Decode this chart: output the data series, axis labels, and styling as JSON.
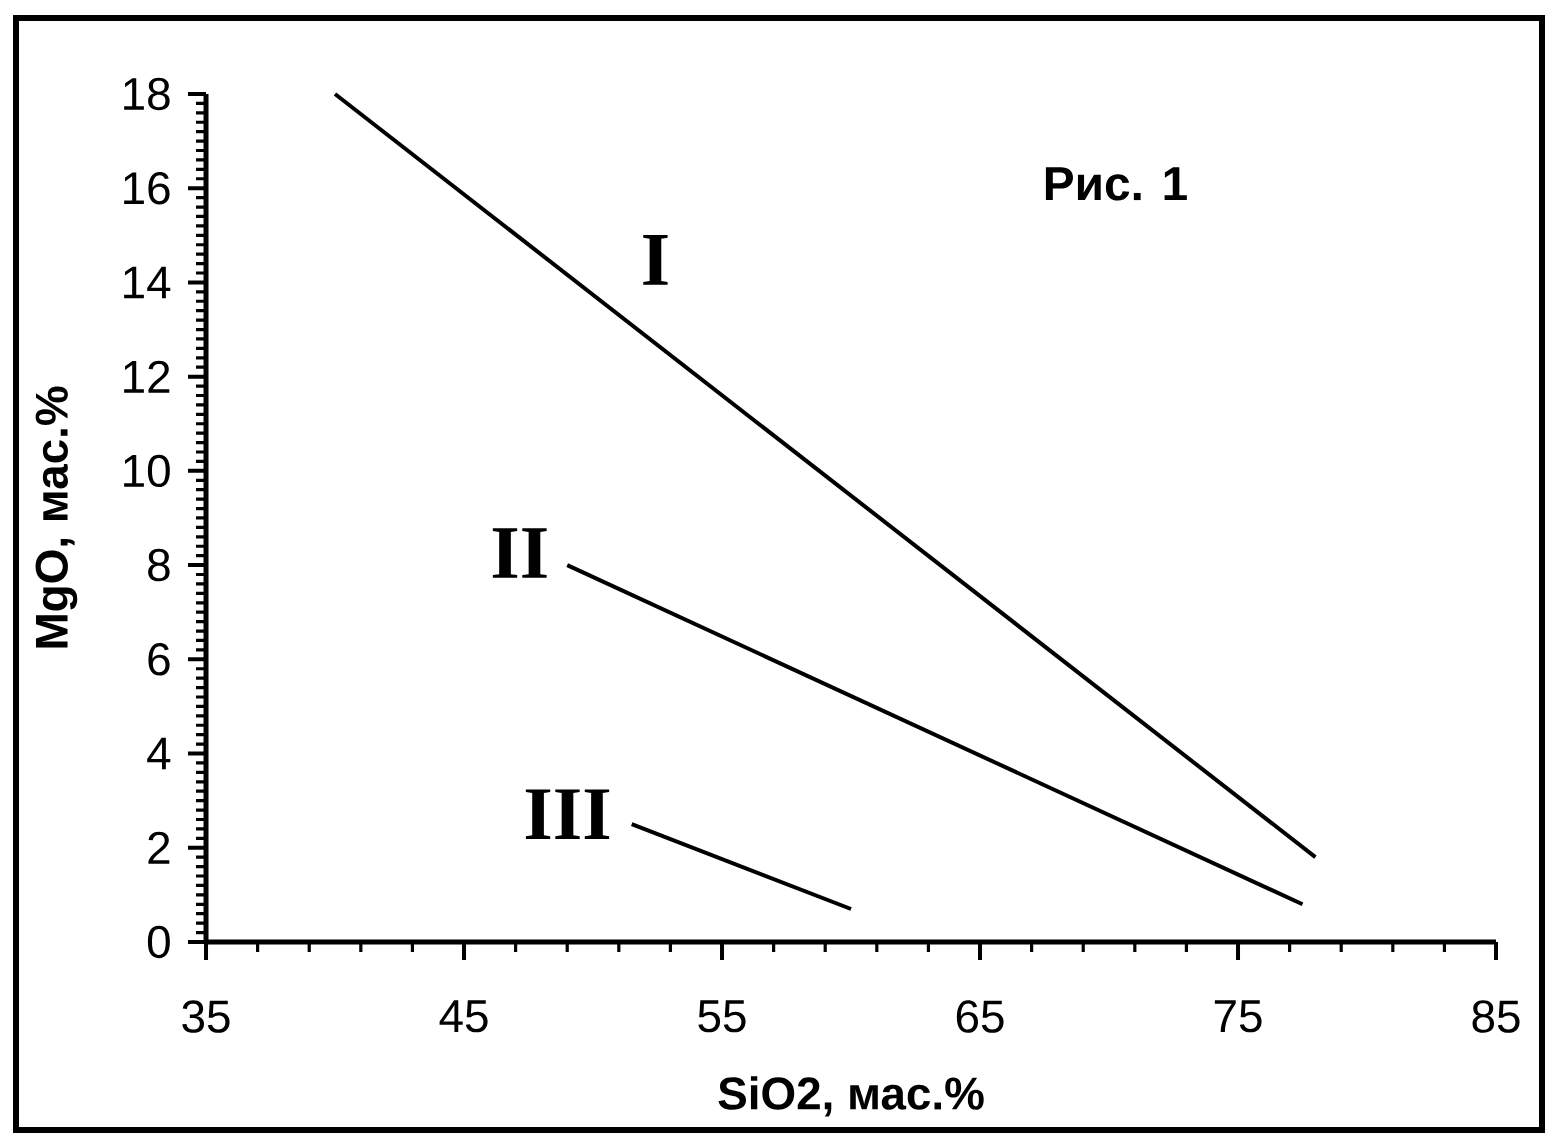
{
  "chart_data": {
    "type": "line",
    "xlabel": "SiO2, мас.%",
    "ylabel": "MgO, мас.%",
    "annotations": [
      "Рис. 1"
    ],
    "series": [
      {
        "name": "I",
        "color": "#000000",
        "x": [
          40,
          78
        ],
        "values": [
          18,
          1.8
        ]
      },
      {
        "name": "II",
        "color": "#000000",
        "x": [
          49,
          77.5
        ],
        "values": [
          8,
          0.8
        ]
      },
      {
        "name": "III",
        "color": "#000000",
        "x": [
          51.5,
          60
        ],
        "values": [
          2.5,
          0.7
        ]
      }
    ],
    "xlim": [
      35,
      85
    ],
    "ylim": [
      0,
      18
    ],
    "xticks": [
      35,
      {
        "value": 37,
        "label": null
      },
      {
        "value": 39,
        "label": null
      },
      {
        "value": 41,
        "label": null
      },
      {
        "value": 43,
        "label": null
      },
      45,
      {
        "value": 47,
        "label": null
      },
      {
        "value": 49,
        "label": null
      },
      {
        "value": 51,
        "label": null
      },
      {
        "value": 53,
        "label": null
      },
      55,
      {
        "value": 57,
        "label": null
      },
      {
        "value": 59,
        "label": null
      },
      {
        "value": 61,
        "label": null
      },
      {
        "value": 63,
        "label": null
      },
      65,
      {
        "value": 67,
        "label": null
      },
      {
        "value": 69,
        "label": null
      },
      {
        "value": 71,
        "label": null
      },
      {
        "value": 73,
        "label": null
      },
      75,
      {
        "value": 77,
        "label": null
      },
      {
        "value": 79,
        "label": null
      },
      {
        "value": 81,
        "label": null
      },
      {
        "value": 83,
        "label": null
      },
      85
    ],
    "yticks": [
      0,
      {
        "value": 0.2,
        "label": null
      },
      {
        "value": 0.4,
        "label": null
      },
      {
        "value": 0.6,
        "label": null
      },
      {
        "value": 0.8,
        "label": null
      },
      {
        "value": 1,
        "label": null
      },
      {
        "value": 1.2,
        "label": null
      },
      {
        "value": 1.4,
        "label": null
      },
      {
        "value": 1.6,
        "label": null
      },
      {
        "value": 1.8,
        "label": null
      },
      2,
      {
        "value": 2.2,
        "label": null
      },
      {
        "value": 2.4,
        "label": null
      },
      {
        "value": 2.6,
        "label": null
      },
      {
        "value": 2.8,
        "label": null
      },
      {
        "value": 3,
        "label": null
      },
      {
        "value": 3.2,
        "label": null
      },
      {
        "value": 3.4,
        "label": null
      },
      {
        "value": 3.6,
        "label": null
      },
      {
        "value": 3.8,
        "label": null
      },
      4,
      {
        "value": 4.2,
        "label": null
      },
      {
        "value": 4.4,
        "label": null
      },
      {
        "value": 4.6,
        "label": null
      },
      {
        "value": 4.8,
        "label": null
      },
      {
        "value": 5,
        "label": null
      },
      {
        "value": 5.2,
        "label": null
      },
      {
        "value": 5.4,
        "label": null
      },
      {
        "value": 5.6,
        "label": null
      },
      {
        "value": 5.8,
        "label": null
      },
      6,
      {
        "value": 6.2,
        "label": null
      },
      {
        "value": 6.4,
        "label": null
      },
      {
        "value": 6.6,
        "label": null
      },
      {
        "value": 6.8,
        "label": null
      },
      {
        "value": 7,
        "label": null
      },
      {
        "value": 7.2,
        "label": null
      },
      {
        "value": 7.4,
        "label": null
      },
      {
        "value": 7.6,
        "label": null
      },
      {
        "value": 7.8,
        "label": null
      },
      8,
      {
        "value": 8.2,
        "label": null
      },
      {
        "value": 8.4,
        "label": null
      },
      {
        "value": 8.6,
        "label": null
      },
      {
        "value": 8.8,
        "label": null
      },
      {
        "value": 9,
        "label": null
      },
      {
        "value": 9.2,
        "label": null
      },
      {
        "value": 9.4,
        "label": null
      },
      {
        "value": 9.6,
        "label": null
      },
      {
        "value": 9.8,
        "label": null
      },
      10,
      {
        "value": 10.2,
        "label": null
      },
      {
        "value": 10.4,
        "label": null
      },
      {
        "value": 10.6,
        "label": null
      },
      {
        "value": 10.8,
        "label": null
      },
      {
        "value": 11,
        "label": null
      },
      {
        "value": 11.2,
        "label": null
      },
      {
        "value": 11.4,
        "label": null
      },
      {
        "value": 11.6,
        "label": null
      },
      {
        "value": 11.8,
        "label": null
      },
      12,
      {
        "value": 12.2,
        "label": null
      },
      {
        "value": 12.4,
        "label": null
      },
      {
        "value": 12.6,
        "label": null
      },
      {
        "value": 12.8,
        "label": null
      },
      {
        "value": 13,
        "label": null
      },
      {
        "value": 13.2,
        "label": null
      },
      {
        "value": 13.4,
        "label": null
      },
      {
        "value": 13.6,
        "label": null
      },
      {
        "value": 13.8,
        "label": null
      },
      14,
      {
        "value": 14.2,
        "label": null
      },
      {
        "value": 14.4,
        "label": null
      },
      {
        "value": 14.6,
        "label": null
      },
      {
        "value": 14.8,
        "label": null
      },
      {
        "value": 15,
        "label": null
      },
      {
        "value": 15.2,
        "label": null
      },
      {
        "value": 15.4,
        "label": null
      },
      {
        "value": 15.6,
        "label": null
      },
      {
        "value": 15.8,
        "label": null
      },
      16,
      {
        "value": 16.2,
        "label": null
      },
      {
        "value": 16.4,
        "label": null
      },
      {
        "value": 16.6,
        "label": null
      },
      {
        "value": 16.8,
        "label": null
      },
      {
        "value": 17,
        "label": null
      },
      {
        "value": 17.2,
        "label": null
      },
      {
        "value": 17.4,
        "label": null
      },
      {
        "value": 17.6,
        "label": null
      },
      {
        "value": 17.8,
        "label": null
      },
      18
    ],
    "marker": "none",
    "line_style": "solid"
  }
}
